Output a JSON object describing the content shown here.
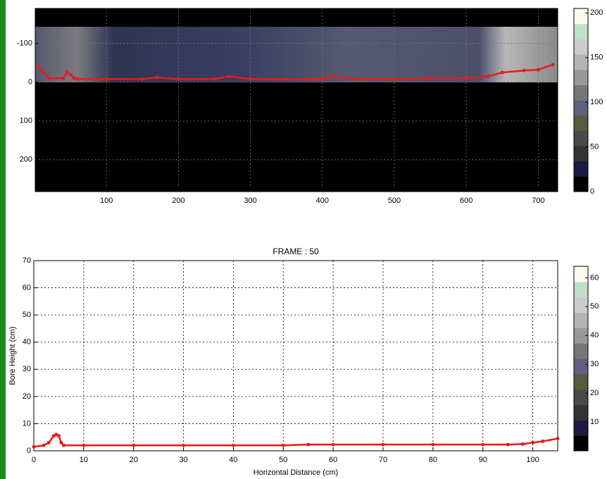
{
  "chart_data": [
    {
      "type": "image",
      "xlim": [
        1,
        727
      ],
      "xticks": [
        100,
        200,
        300,
        400,
        500,
        600,
        700
      ],
      "ylim": [
        -190,
        282
      ],
      "y_reversed": true,
      "yticks": [
        -100,
        0,
        100,
        200
      ],
      "grid": true,
      "series": [
        {
          "color": "#e41c1c",
          "x": [
            5,
            10,
            20,
            40,
            45,
            50,
            55,
            60,
            100,
            150,
            170,
            200,
            250,
            270,
            300,
            350,
            380,
            400,
            410,
            450,
            500,
            550,
            600,
            630,
            650,
            680,
            700,
            720
          ],
          "values": [
            -40,
            -30,
            -10,
            -10,
            -25,
            -20,
            -10,
            -8,
            -8,
            -8,
            -12,
            -8,
            -8,
            -15,
            -8,
            -8,
            -8,
            -8,
            -15,
            -8,
            -8,
            -10,
            -10,
            -15,
            -25,
            -30,
            -32,
            -45
          ]
        }
      ],
      "colorbar": {
        "lim": [
          0,
          205
        ],
        "ticks": [
          0,
          50,
          100,
          150,
          200
        ],
        "colors": [
          "#000000",
          "#1c1c40",
          "#333333",
          "#4a4a4a",
          "#575a3c",
          "#5e6080",
          "#777777",
          "#999999",
          "#b4b4b4",
          "#cccccc",
          "#bfe0c8",
          "#fbfaec"
        ]
      }
    },
    {
      "type": "line",
      "title": "FRAME : 50",
      "x_label": "Horizontal Distance (cm)",
      "y_label": "Bore Height (cm)",
      "xlim": [
        0,
        105
      ],
      "xticks": [
        0,
        10,
        20,
        30,
        40,
        50,
        60,
        70,
        80,
        90,
        100
      ],
      "ylim": [
        0,
        70
      ],
      "yticks": [
        0,
        10,
        20,
        30,
        40,
        50,
        60,
        70
      ],
      "grid": true,
      "series": [
        {
          "color": "#e41c1c",
          "x": [
            0,
            2,
            3,
            4,
            4.5,
            5,
            5.5,
            6,
            10,
            20,
            30,
            40,
            50,
            55,
            60,
            70,
            80,
            90,
            95,
            98,
            100,
            102,
            105
          ],
          "values": [
            1.5,
            2,
            3,
            5.5,
            6,
            5.5,
            3,
            2,
            2,
            2,
            2,
            2,
            2,
            2.3,
            2.3,
            2.3,
            2.3,
            2.3,
            2.3,
            2.5,
            3,
            3.5,
            4.5
          ]
        }
      ],
      "colorbar": {
        "lim": [
          0,
          64
        ],
        "ticks": [
          10,
          20,
          30,
          40,
          50,
          60
        ],
        "colors": [
          "#000000",
          "#1c1c40",
          "#333333",
          "#4a4a4a",
          "#575a3c",
          "#5e6080",
          "#777777",
          "#999999",
          "#b4b4b4",
          "#cccccc",
          "#bfe0c8",
          "#fbfaec"
        ]
      }
    }
  ]
}
